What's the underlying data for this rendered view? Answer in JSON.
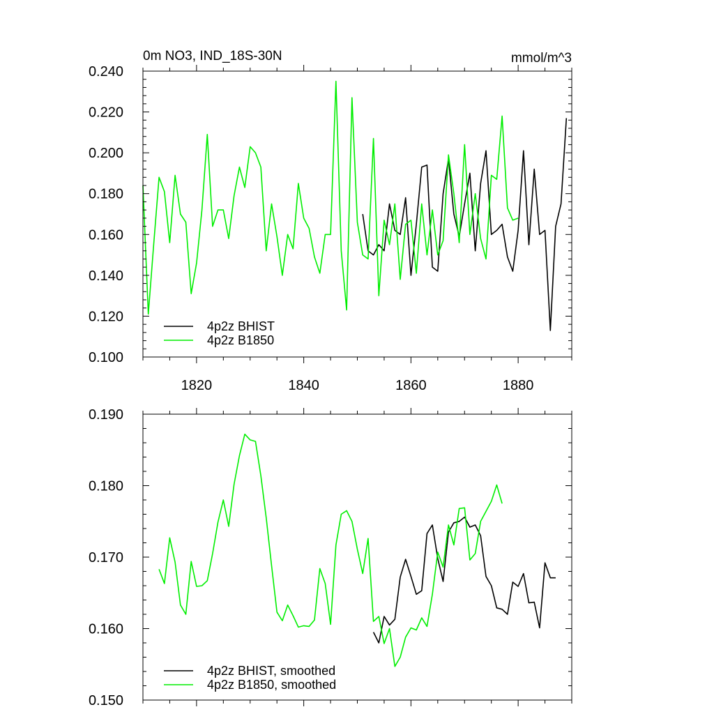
{
  "header": {
    "title": "0m NO3, IND_18S-30N",
    "units": "mmol/m^3"
  },
  "colors": {
    "bhist": "#000000",
    "b1850": "#00ee00"
  },
  "chart_data": [
    {
      "type": "line",
      "title": "0m NO3, IND_18S-30N",
      "units": "mmol/m^3",
      "xlim": [
        1810,
        1890
      ],
      "ylim": [
        0.1,
        0.24
      ],
      "x_ticks": [
        1820,
        1840,
        1860,
        1880
      ],
      "x_tick_labels": [
        "1820",
        "1840",
        "1860",
        "1880"
      ],
      "y_ticks": [
        0.1,
        0.12,
        0.14,
        0.16,
        0.18,
        0.2,
        0.22,
        0.24
      ],
      "y_tick_labels": [
        "0.100",
        "0.120",
        "0.140",
        "0.160",
        "0.180",
        "0.200",
        "0.220",
        "0.240"
      ],
      "legend_position": "bottom-left",
      "series": [
        {
          "name": "4p2z BHIST",
          "color": "#000000",
          "x": [
            1851,
            1852,
            1853,
            1854,
            1855,
            1856,
            1857,
            1858,
            1859,
            1860,
            1861,
            1862,
            1863,
            1864,
            1865,
            1866,
            1867,
            1868,
            1869,
            1870,
            1871,
            1872,
            1873,
            1874,
            1875,
            1876,
            1877,
            1878,
            1879,
            1880,
            1881,
            1882,
            1883,
            1884,
            1885,
            1886,
            1887,
            1888,
            1889
          ],
          "values": [
            0.17,
            0.152,
            0.15,
            0.155,
            0.152,
            0.175,
            0.162,
            0.16,
            0.178,
            0.14,
            0.165,
            0.193,
            0.194,
            0.144,
            0.142,
            0.18,
            0.197,
            0.17,
            0.159,
            0.175,
            0.19,
            0.152,
            0.185,
            0.201,
            0.16,
            0.162,
            0.165,
            0.149,
            0.142,
            0.162,
            0.201,
            0.155,
            0.192,
            0.16,
            0.162,
            0.113,
            0.164,
            0.175,
            0.217
          ]
        },
        {
          "name": "4p2z B1850",
          "color": "#00ee00",
          "x": [
            1810,
            1811,
            1812,
            1813,
            1814,
            1815,
            1816,
            1817,
            1818,
            1819,
            1820,
            1821,
            1822,
            1823,
            1824,
            1825,
            1826,
            1827,
            1828,
            1829,
            1830,
            1831,
            1832,
            1833,
            1834,
            1835,
            1836,
            1837,
            1838,
            1839,
            1840,
            1841,
            1842,
            1843,
            1844,
            1845,
            1846,
            1847,
            1848,
            1849,
            1850,
            1851,
            1852,
            1853,
            1854,
            1855,
            1856,
            1857,
            1858,
            1859,
            1860,
            1861,
            1862,
            1863,
            1864,
            1865,
            1866,
            1867,
            1868,
            1869,
            1870,
            1871,
            1872,
            1873,
            1874,
            1875,
            1876,
            1877,
            1878,
            1879,
            1880
          ],
          "values": [
            0.184,
            0.121,
            0.155,
            0.188,
            0.181,
            0.156,
            0.189,
            0.17,
            0.166,
            0.131,
            0.146,
            0.172,
            0.209,
            0.164,
            0.172,
            0.172,
            0.158,
            0.179,
            0.193,
            0.183,
            0.203,
            0.2,
            0.193,
            0.152,
            0.175,
            0.159,
            0.14,
            0.16,
            0.153,
            0.185,
            0.168,
            0.163,
            0.149,
            0.141,
            0.16,
            0.16,
            0.235,
            0.152,
            0.123,
            0.227,
            0.166,
            0.15,
            0.148,
            0.207,
            0.13,
            0.167,
            0.155,
            0.175,
            0.138,
            0.165,
            0.167,
            0.141,
            0.175,
            0.15,
            0.172,
            0.15,
            0.157,
            0.199,
            0.18,
            0.156,
            0.204,
            0.16,
            0.18,
            0.158,
            0.148,
            0.189,
            0.187,
            0.218,
            0.173,
            0.167,
            0.168
          ]
        }
      ]
    },
    {
      "type": "line",
      "xlim": [
        1810,
        1890
      ],
      "ylim": [
        0.15,
        0.19
      ],
      "x_ticks": [
        1820,
        1840,
        1860,
        1880
      ],
      "y_ticks": [
        0.15,
        0.16,
        0.17,
        0.18,
        0.19
      ],
      "y_tick_labels": [
        "0.150",
        "0.160",
        "0.170",
        "0.180",
        "0.190"
      ],
      "legend_position": "bottom-left",
      "series": [
        {
          "name": "4p2z BHIST, smoothed",
          "color": "#000000",
          "x": [
            1853,
            1854,
            1855,
            1856,
            1857,
            1858,
            1859,
            1860,
            1861,
            1862,
            1863,
            1864,
            1865,
            1866,
            1867,
            1868,
            1869,
            1870,
            1871,
            1872,
            1873,
            1874,
            1875,
            1876,
            1877,
            1878,
            1879,
            1880,
            1881,
            1882,
            1883,
            1884,
            1885,
            1886,
            1887
          ],
          "values": [
            0.1595,
            0.158,
            0.1617,
            0.1605,
            0.1613,
            0.1672,
            0.1697,
            0.1673,
            0.1648,
            0.1653,
            0.1733,
            0.1745,
            0.1698,
            0.1666,
            0.1735,
            0.1748,
            0.175,
            0.1756,
            0.1742,
            0.1745,
            0.173,
            0.1673,
            0.166,
            0.1629,
            0.1627,
            0.162,
            0.1665,
            0.1659,
            0.1677,
            0.1636,
            0.1637,
            0.1601,
            0.1692,
            0.1671,
            0.1671
          ]
        },
        {
          "name": "4p2z B1850, smoothed",
          "color": "#00ee00",
          "x": [
            1813,
            1814,
            1815,
            1816,
            1817,
            1818,
            1819,
            1820,
            1821,
            1822,
            1823,
            1824,
            1825,
            1826,
            1827,
            1828,
            1829,
            1830,
            1831,
            1832,
            1833,
            1834,
            1835,
            1836,
            1837,
            1838,
            1839,
            1840,
            1841,
            1842,
            1843,
            1844,
            1845,
            1846,
            1847,
            1848,
            1849,
            1850,
            1851,
            1852,
            1853,
            1854,
            1855,
            1856,
            1857,
            1858,
            1859,
            1860,
            1861,
            1862,
            1863,
            1864,
            1865,
            1866,
            1867,
            1868,
            1869,
            1870,
            1871,
            1872,
            1873,
            1874,
            1875,
            1876,
            1877
          ],
          "values": [
            0.1683,
            0.1663,
            0.1727,
            0.1693,
            0.1633,
            0.162,
            0.1694,
            0.1659,
            0.166,
            0.1667,
            0.1705,
            0.1749,
            0.178,
            0.1743,
            0.1802,
            0.1842,
            0.1872,
            0.1864,
            0.1862,
            0.1814,
            0.1755,
            0.1688,
            0.1623,
            0.1611,
            0.1633,
            0.1618,
            0.1602,
            0.1604,
            0.1603,
            0.1612,
            0.1684,
            0.1663,
            0.1606,
            0.1717,
            0.176,
            0.1765,
            0.175,
            0.1711,
            0.1677,
            0.1726,
            0.161,
            0.1617,
            0.1579,
            0.16,
            0.1547,
            0.156,
            0.1588,
            0.1601,
            0.1598,
            0.1615,
            0.1603,
            0.1648,
            0.1707,
            0.1686,
            0.1745,
            0.1717,
            0.1768,
            0.1769,
            0.1696,
            0.1705,
            0.175,
            0.1764,
            0.1778,
            0.1801,
            0.1775
          ]
        }
      ]
    }
  ]
}
